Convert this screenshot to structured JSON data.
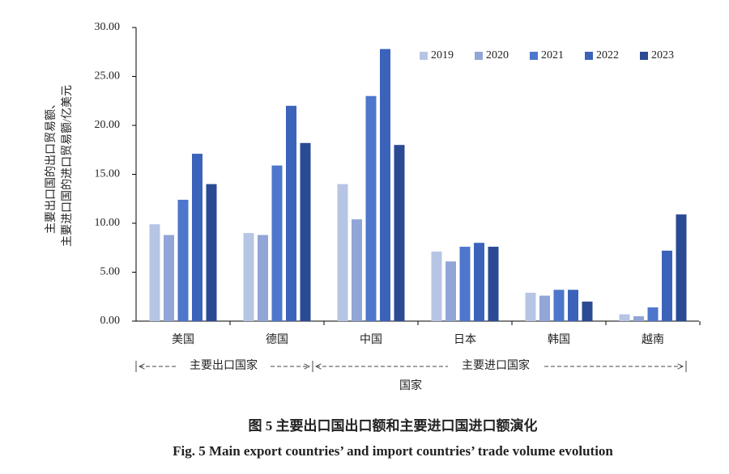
{
  "chart_data": {
    "type": "bar",
    "title": "图 5  主要出口国出口额和主要进口国进口额演化",
    "subtitle": "Fig. 5  Main export countries’ and import countries’ trade volume evolution",
    "y_label": [
      "主要出口国的出口贸易额、",
      "主要进口国的进口贸易额/亿美元"
    ],
    "x_label": "国家",
    "group_labels": [
      "主要出口国家",
      "主要进口国家"
    ],
    "categories": [
      "美国",
      "德国",
      "中国",
      "日本",
      "韩国",
      "越南"
    ],
    "series": [
      {
        "name": "2019",
        "color": "#b7c5e4",
        "values": [
          9.9,
          9.0,
          14.0,
          7.1,
          2.9,
          0.7
        ]
      },
      {
        "name": "2020",
        "color": "#91a5d6",
        "values": [
          8.8,
          8.8,
          10.4,
          6.1,
          2.6,
          0.5
        ]
      },
      {
        "name": "2021",
        "color": "#4d76cc",
        "values": [
          12.4,
          15.9,
          23.0,
          7.6,
          3.2,
          1.4
        ]
      },
      {
        "name": "2022",
        "color": "#3b63ba",
        "values": [
          17.1,
          22.0,
          27.8,
          8.0,
          3.2,
          7.2
        ]
      },
      {
        "name": "2023",
        "color": "#2b4a94",
        "values": [
          14.0,
          18.2,
          18.0,
          7.6,
          2.0,
          10.9
        ]
      }
    ],
    "ylim": [
      0,
      30
    ],
    "yticks": [
      {
        "value": 0,
        "label": "0.00"
      },
      {
        "value": 5,
        "label": "5.00"
      },
      {
        "value": 10,
        "label": "10.00"
      },
      {
        "value": 15,
        "label": "15.00"
      },
      {
        "value": 20,
        "label": "20.00"
      },
      {
        "value": 25,
        "label": "25.00"
      },
      {
        "value": 30,
        "label": "30.00"
      }
    ],
    "legend": "top-right"
  }
}
